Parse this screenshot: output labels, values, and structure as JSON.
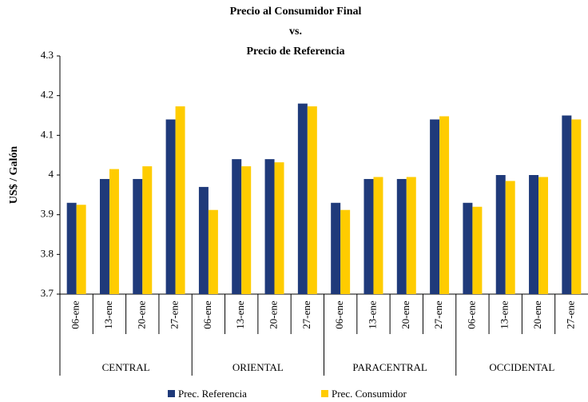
{
  "chart_data": {
    "type": "bar",
    "title": [
      "Precio al Consumidor Final",
      "vs.",
      "Precio de Referencia"
    ],
    "y_label": "US$ / Galón",
    "groups": [
      {
        "label": "CENTRAL",
        "categories": [
          "06-ene",
          "13-ene",
          "20-ene",
          "27-ene"
        ]
      },
      {
        "label": "ORIENTAL",
        "categories": [
          "06-ene",
          "13-ene",
          "20-ene",
          "27-ene"
        ]
      },
      {
        "label": "PARACENTRAL",
        "categories": [
          "06-ene",
          "13-ene",
          "20-ene",
          "27-ene"
        ]
      },
      {
        "label": "OCCIDENTAL",
        "categories": [
          "06-ene",
          "13-ene",
          "20-ene",
          "27-ene"
        ]
      }
    ],
    "series": [
      {
        "name": "Prec. Referencia",
        "color": "#1f3a7a",
        "values": [
          3.93,
          3.99,
          3.99,
          4.14,
          3.97,
          4.04,
          4.04,
          4.18,
          3.93,
          3.99,
          3.99,
          4.14,
          3.93,
          4.0,
          4.0,
          4.15
        ]
      },
      {
        "name": "Prec. Consumidor",
        "color": "#ffcc00",
        "values": [
          3.925,
          4.015,
          4.022,
          4.173,
          3.912,
          4.022,
          4.032,
          4.173,
          3.912,
          3.995,
          3.995,
          4.148,
          3.92,
          3.985,
          3.995,
          4.14
        ]
      }
    ],
    "ylim": [
      3.7,
      4.3
    ],
    "yticks": [
      3.7,
      3.8,
      3.9,
      4,
      4.1,
      4.2,
      4.3
    ],
    "legend": "bottom"
  }
}
